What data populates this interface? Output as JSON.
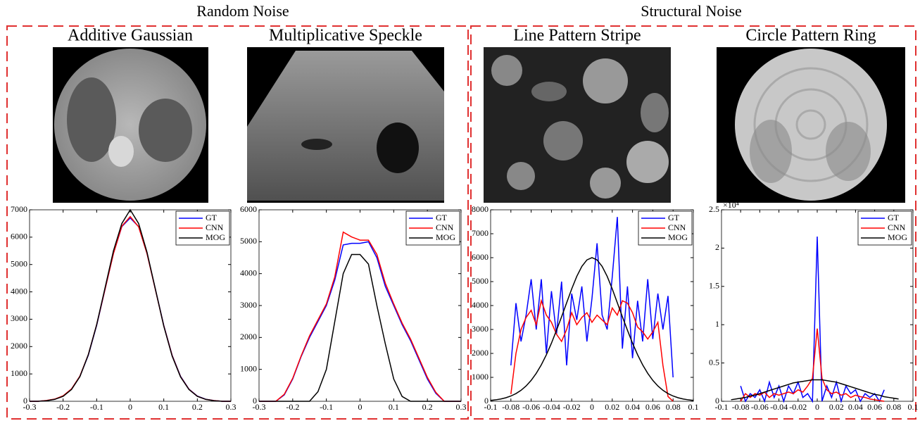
{
  "figure": {
    "groups": [
      {
        "title": "Random Noise"
      },
      {
        "title": "Structural Noise"
      }
    ]
  },
  "chart_data": [
    {
      "type": "line",
      "title": "Additive Gaussian",
      "legend": "upper right",
      "grid": false,
      "x": [
        -0.3,
        -0.275,
        -0.25,
        -0.225,
        -0.2,
        -0.175,
        -0.15,
        -0.125,
        -0.1,
        -0.075,
        -0.05,
        -0.025,
        0,
        0.025,
        0.05,
        0.075,
        0.1,
        0.125,
        0.15,
        0.175,
        0.2,
        0.225,
        0.25,
        0.275,
        0.3
      ],
      "xlim": [
        -0.3,
        0.3
      ],
      "xticks": [
        -0.3,
        -0.2,
        -0.1,
        0,
        0.1,
        0.2,
        0.3
      ],
      "ylim": [
        0,
        7000
      ],
      "yticks": [
        0,
        1000,
        2000,
        3000,
        4000,
        5000,
        6000,
        7000
      ],
      "series": [
        {
          "name": "GT",
          "color": "#0000ff",
          "values": [
            0,
            0,
            26,
            75,
            190,
            445,
            913,
            1680,
            2775,
            4094,
            5406,
            6385,
            6700,
            6385,
            5406,
            4094,
            2775,
            1680,
            913,
            445,
            190,
            75,
            26,
            0,
            0
          ]
        },
        {
          "name": "CNN",
          "color": "#ff0000",
          "values": [
            0,
            0,
            30,
            80,
            200,
            450,
            920,
            1700,
            2800,
            4100,
            5400,
            6400,
            6750,
            6380,
            5400,
            4080,
            2760,
            1670,
            900,
            440,
            185,
            70,
            25,
            0,
            0
          ]
        },
        {
          "name": "MOG",
          "color": "#000000",
          "values": [
            0,
            0,
            20,
            70,
            180,
            430,
            900,
            1700,
            2800,
            4150,
            5500,
            6500,
            7000,
            6500,
            5450,
            4100,
            2750,
            1650,
            890,
            430,
            180,
            70,
            20,
            0,
            0
          ]
        }
      ]
    },
    {
      "type": "line",
      "title": "Multiplicative Speckle",
      "legend": "upper right",
      "grid": false,
      "x": [
        -0.3,
        -0.275,
        -0.25,
        -0.225,
        -0.2,
        -0.175,
        -0.15,
        -0.125,
        -0.1,
        -0.075,
        -0.05,
        -0.025,
        0,
        0.025,
        0.05,
        0.075,
        0.1,
        0.125,
        0.15,
        0.175,
        0.2,
        0.225,
        0.25,
        0.275,
        0.3
      ],
      "xlim": [
        -0.3,
        0.3
      ],
      "xticks": [
        -0.3,
        -0.2,
        -0.1,
        0,
        0.1,
        0.2,
        0.3
      ],
      "ylim": [
        0,
        6000
      ],
      "yticks": [
        0,
        1000,
        2000,
        3000,
        4000,
        5000,
        6000
      ],
      "series": [
        {
          "name": "GT",
          "color": "#0000ff",
          "values": [
            0,
            0,
            0,
            200,
            700,
            1400,
            2000,
            2500,
            3000,
            3800,
            4900,
            4950,
            4950,
            5000,
            4500,
            3600,
            3000,
            2400,
            1900,
            1300,
            700,
            250,
            0,
            0,
            0
          ]
        },
        {
          "name": "CNN",
          "color": "#ff0000",
          "values": [
            0,
            0,
            0,
            220,
            720,
            1420,
            2050,
            2550,
            3050,
            3900,
            5300,
            5150,
            5050,
            5050,
            4600,
            3700,
            3050,
            2450,
            1950,
            1350,
            750,
            280,
            0,
            0,
            0
          ]
        },
        {
          "name": "MOG",
          "color": "#000000",
          "values": [
            0,
            0,
            0,
            0,
            0,
            0,
            0,
            300,
            1000,
            2500,
            4000,
            4600,
            4600,
            4300,
            3000,
            1800,
            700,
            150,
            0,
            0,
            0,
            0,
            0,
            0,
            0
          ]
        }
      ]
    },
    {
      "type": "line",
      "title": "Line Pattern Stripe",
      "legend": "upper right",
      "grid": false,
      "x": [
        -0.1,
        -0.095,
        -0.09,
        -0.085,
        -0.08,
        -0.075,
        -0.07,
        -0.065,
        -0.06,
        -0.055,
        -0.05,
        -0.045,
        -0.04,
        -0.035,
        -0.03,
        -0.025,
        -0.02,
        -0.015,
        -0.01,
        -0.005,
        0,
        0.005,
        0.01,
        0.015,
        0.02,
        0.025,
        0.03,
        0.035,
        0.04,
        0.045,
        0.05,
        0.055,
        0.06,
        0.065,
        0.07,
        0.075,
        0.08,
        0.085,
        0.09,
        0.095,
        0.1
      ],
      "xlim": [
        -0.1,
        0.1
      ],
      "xticks": [
        -0.1,
        -0.08,
        -0.06,
        -0.04,
        -0.02,
        0,
        0.02,
        0.04,
        0.06,
        0.08,
        0.1
      ],
      "ylim": [
        0,
        8000
      ],
      "yticks": [
        0,
        1000,
        2000,
        3000,
        4000,
        5000,
        6000,
        7000,
        8000
      ],
      "series": [
        {
          "name": "GT",
          "color": "#0000ff",
          "values": [
            null,
            null,
            null,
            null,
            1500,
            4100,
            2500,
            3600,
            5100,
            3000,
            5100,
            2000,
            4600,
            2800,
            5000,
            1500,
            4500,
            3400,
            4800,
            2500,
            4300,
            6600,
            3600,
            3000,
            5200,
            7700,
            2200,
            4800,
            1800,
            4200,
            2500,
            5100,
            2600,
            4500,
            3000,
            4400,
            1000,
            null,
            null,
            null,
            null
          ]
        },
        {
          "name": "CNN",
          "color": "#ff0000",
          "values": [
            null,
            null,
            null,
            null,
            300,
            2000,
            3000,
            3500,
            3800,
            3200,
            4200,
            3600,
            3300,
            2800,
            2500,
            3000,
            3700,
            3200,
            3500,
            3700,
            3300,
            3600,
            3400,
            3200,
            3900,
            3600,
            4200,
            4100,
            3700,
            3100,
            2900,
            2600,
            2900,
            3300,
            1500,
            200,
            0,
            null,
            null,
            null,
            null
          ]
        },
        {
          "name": "MOG",
          "color": "#000000",
          "values": [
            38,
            61,
            96,
            148,
            221,
            322,
            459,
            640,
            874,
            1167,
            1523,
            1943,
            2427,
            2968,
            3530,
            4113,
            4695,
            5219,
            5636,
            5906,
            6000,
            5906,
            5636,
            5219,
            4695,
            4113,
            3530,
            2968,
            2427,
            1943,
            1523,
            1167,
            874,
            640,
            459,
            322,
            221,
            148,
            96,
            61,
            38
          ]
        }
      ]
    },
    {
      "type": "line",
      "title": "Circle Pattern Ring",
      "legend": "upper right",
      "grid": false,
      "y_exponent_label": "×10⁴",
      "x": [
        -0.1,
        -0.095,
        -0.09,
        -0.085,
        -0.08,
        -0.075,
        -0.07,
        -0.065,
        -0.06,
        -0.055,
        -0.05,
        -0.045,
        -0.04,
        -0.035,
        -0.03,
        -0.025,
        -0.02,
        -0.015,
        -0.01,
        -0.005,
        0,
        0.005,
        0.01,
        0.015,
        0.02,
        0.025,
        0.03,
        0.035,
        0.04,
        0.045,
        0.05,
        0.055,
        0.06,
        0.065,
        0.07,
        0.075,
        0.08,
        0.085,
        0.09,
        0.095,
        0.1
      ],
      "xlim": [
        -0.1,
        0.1
      ],
      "xticks": [
        -0.1,
        -0.08,
        -0.06,
        -0.04,
        -0.02,
        0,
        0.02,
        0.04,
        0.06,
        0.08,
        0.1
      ],
      "ylim": [
        0,
        2.5
      ],
      "yticks": [
        0,
        0.5,
        1,
        1.5,
        2,
        2.5
      ],
      "series": [
        {
          "name": "GT",
          "color": "#0000ff",
          "values": [
            null,
            null,
            null,
            null,
            0.2,
            0,
            0.1,
            0.05,
            0.15,
            0,
            0.25,
            0.05,
            0.2,
            0,
            0.2,
            0.1,
            0.25,
            0.05,
            0.1,
            0,
            2.15,
            0,
            0.2,
            0.05,
            0.25,
            0,
            0.2,
            0.1,
            0.15,
            0,
            0.1,
            0.05,
            0.1,
            0,
            0.15,
            null,
            null,
            null,
            null,
            null,
            null
          ]
        },
        {
          "name": "CNN",
          "color": "#ff0000",
          "values": [
            null,
            null,
            null,
            null,
            0,
            0.1,
            0.05,
            0.1,
            0.08,
            0.12,
            0.05,
            0.1,
            0.08,
            0.1,
            0.12,
            0.1,
            0.15,
            0.12,
            0.2,
            0.3,
            0.95,
            0.3,
            0.15,
            0.1,
            0.12,
            0.08,
            0.1,
            0.05,
            0.08,
            0.06,
            0.05,
            0.03,
            0.02,
            0.01,
            0,
            null,
            null,
            null,
            null,
            null,
            null
          ]
        },
        {
          "name": "MOG",
          "color": "#000000",
          "values": [
            null,
            null,
            0.02,
            0.03,
            0.04,
            0.05,
            0.07,
            0.08,
            0.1,
            0.12,
            0.14,
            0.16,
            0.18,
            0.2,
            0.22,
            0.24,
            0.25,
            0.26,
            0.27,
            0.28,
            0.28,
            0.28,
            0.27,
            0.26,
            0.25,
            0.23,
            0.21,
            0.19,
            0.17,
            0.15,
            0.13,
            0.11,
            0.09,
            0.08,
            0.06,
            0.05,
            0.04,
            0.03,
            null,
            null,
            null
          ]
        }
      ]
    }
  ]
}
